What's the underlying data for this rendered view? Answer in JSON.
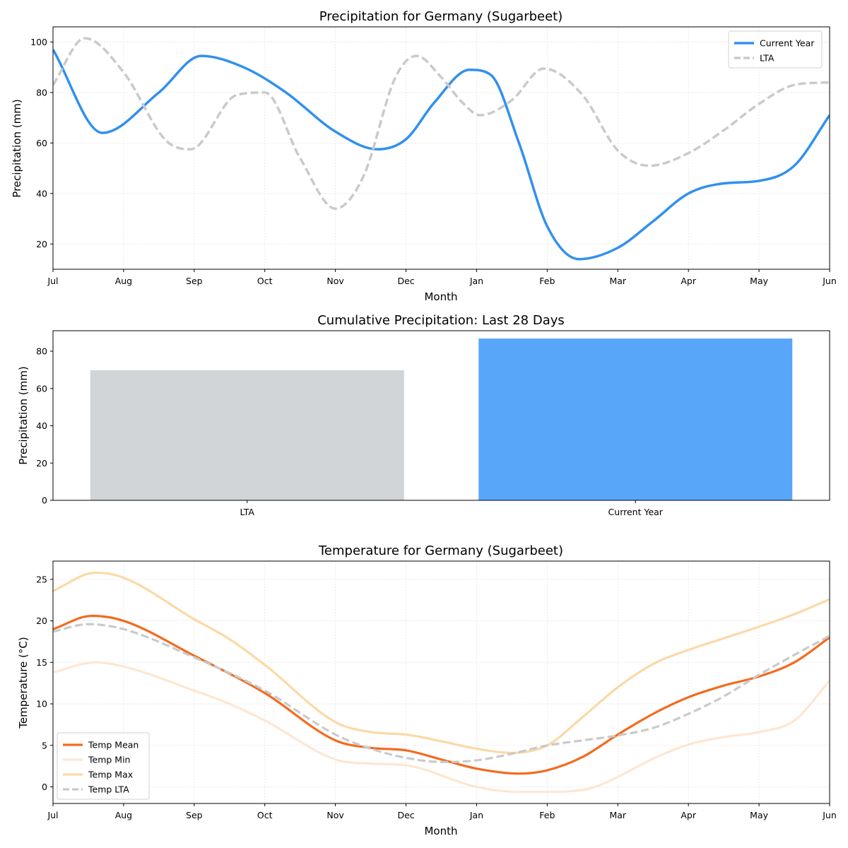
{
  "chart_data": [
    {
      "type": "line",
      "title": "Precipitation for Germany (Sugarbeet)",
      "xlabel": "Month",
      "ylabel": "Precipitation (mm)",
      "categories": [
        "Jul",
        "Aug",
        "Sep",
        "Oct",
        "Nov",
        "Dec",
        "Jan",
        "Feb",
        "Mar",
        "Apr",
        "May",
        "Jun"
      ],
      "ylim": [
        10,
        106
      ],
      "yticks": [
        20,
        40,
        60,
        80,
        100
      ],
      "grid": true,
      "legend_position": "top-right",
      "series": [
        {
          "name": "Current Year",
          "color": "#3190ee",
          "style": "solid",
          "x": [
            0,
            0.7,
            1.5,
            2.1,
            2.7,
            3.3,
            4.0,
            4.6,
            5.0,
            5.4,
            5.9,
            6.2,
            6.6,
            7.0,
            7.45,
            8.0,
            8.5,
            9.0,
            9.5,
            10.0,
            10.5,
            11.0
          ],
          "values": [
            97,
            64,
            80,
            94.5,
            90,
            80,
            64.5,
            57.5,
            61.5,
            76,
            89,
            87,
            60,
            27,
            14,
            18.5,
            29,
            40,
            44,
            45,
            51,
            71
          ]
        },
        {
          "name": "LTA",
          "color": "#c8cacc",
          "style": "dashed",
          "x": [
            0,
            0.45,
            1.0,
            1.6,
            1.95,
            2.6,
            3.0,
            3.5,
            4.0,
            4.4,
            4.85,
            5.15,
            5.5,
            5.8,
            6.05,
            6.5,
            6.95,
            7.5,
            8.0,
            8.45,
            9.0,
            9.5,
            10.0,
            10.5,
            11.0
          ],
          "values": [
            83,
            101.5,
            88,
            61,
            57.5,
            79,
            80,
            54,
            34,
            47,
            86,
            94.5,
            86,
            76,
            71,
            77,
            89.5,
            79,
            57,
            51,
            56,
            65,
            75.5,
            83,
            84
          ]
        }
      ]
    },
    {
      "type": "bar",
      "title": "Cumulative Precipitation: Last 28 Days",
      "xlabel": "",
      "ylabel": "Precipitation (mm)",
      "categories": [
        "LTA",
        "Current Year"
      ],
      "values": [
        69.8,
        86.8
      ],
      "colors": [
        "#d1d5d8",
        "#58a6f9"
      ],
      "ylim": [
        0,
        91
      ],
      "yticks": [
        0,
        20,
        40,
        60,
        80
      ],
      "grid": false
    },
    {
      "type": "line",
      "title": "Temperature for Germany (Sugarbeet)",
      "xlabel": "Month",
      "ylabel": "Temperature (°C)",
      "categories": [
        "Jul",
        "Aug",
        "Sep",
        "Oct",
        "Nov",
        "Dec",
        "Jan",
        "Feb",
        "Mar",
        "Apr",
        "May",
        "Jun"
      ],
      "ylim": [
        -2,
        27.2
      ],
      "yticks": [
        0,
        5,
        10,
        15,
        20,
        25
      ],
      "grid": true,
      "legend_position": "lower-left",
      "series": [
        {
          "name": "Temp Mean",
          "color": "#f36b1f",
          "style": "solid",
          "width": 3.2,
          "x": [
            0,
            0.55,
            1.0,
            2.0,
            3.0,
            4.0,
            4.5,
            5.0,
            5.5,
            6.0,
            6.6,
            7.0,
            7.5,
            8.0,
            8.5,
            9.0,
            9.5,
            10.0,
            10.5,
            11.0
          ],
          "values": [
            19,
            20.6,
            20,
            15.8,
            11.3,
            5.6,
            4.7,
            4.4,
            3.3,
            2.2,
            1.6,
            2.0,
            3.6,
            6.3,
            8.8,
            10.8,
            12.2,
            13.3,
            15.0,
            18.0
          ]
        },
        {
          "name": "Temp Min",
          "color": "#fee6d1",
          "style": "solid",
          "width": 3.2,
          "x": [
            0,
            0.6,
            1.0,
            2.0,
            2.5,
            3.0,
            4.0,
            4.5,
            5.0,
            6.0,
            6.6,
            7.0,
            7.6,
            8.0,
            8.5,
            9.0,
            9.5,
            10.0,
            10.5,
            11.0
          ],
          "values": [
            13.8,
            15,
            14.5,
            11.6,
            10,
            8,
            3.3,
            2.8,
            2.6,
            0,
            -0.6,
            -0.6,
            -0.2,
            1.2,
            3.4,
            5.1,
            6,
            6.6,
            8,
            12.8
          ]
        },
        {
          "name": "Temp Max",
          "color": "#fbd9a6",
          "style": "solid",
          "width": 3.2,
          "x": [
            0,
            0.6,
            1.0,
            2.0,
            2.5,
            3.0,
            4.0,
            4.5,
            5.0,
            5.5,
            6.0,
            6.5,
            7.0,
            7.5,
            8.0,
            8.5,
            9.0,
            9.5,
            10.0,
            10.5,
            11.0
          ],
          "values": [
            23.6,
            25.8,
            25.2,
            20.2,
            17.8,
            14.7,
            7.8,
            6.6,
            6.3,
            5.5,
            4.6,
            4.1,
            5.0,
            8.4,
            12.0,
            14.8,
            16.5,
            17.9,
            19.3,
            20.8,
            22.6
          ]
        },
        {
          "name": "Temp LTA",
          "color": "#c8cacc",
          "style": "dashed",
          "width": 3.2,
          "x": [
            0,
            0.5,
            1.0,
            2.0,
            3.0,
            4.0,
            4.5,
            5.0,
            5.5,
            6.0,
            6.5,
            7.0,
            7.5,
            8.0,
            8.5,
            9.0,
            9.5,
            10.0,
            10.5,
            11.0
          ],
          "values": [
            18.7,
            19.6,
            19.0,
            15.6,
            11.6,
            6.3,
            4.6,
            3.5,
            3.0,
            3.2,
            4.0,
            5.0,
            5.6,
            6.2,
            7.1,
            8.8,
            10.9,
            13.5,
            15.9,
            18.2
          ]
        }
      ]
    }
  ]
}
